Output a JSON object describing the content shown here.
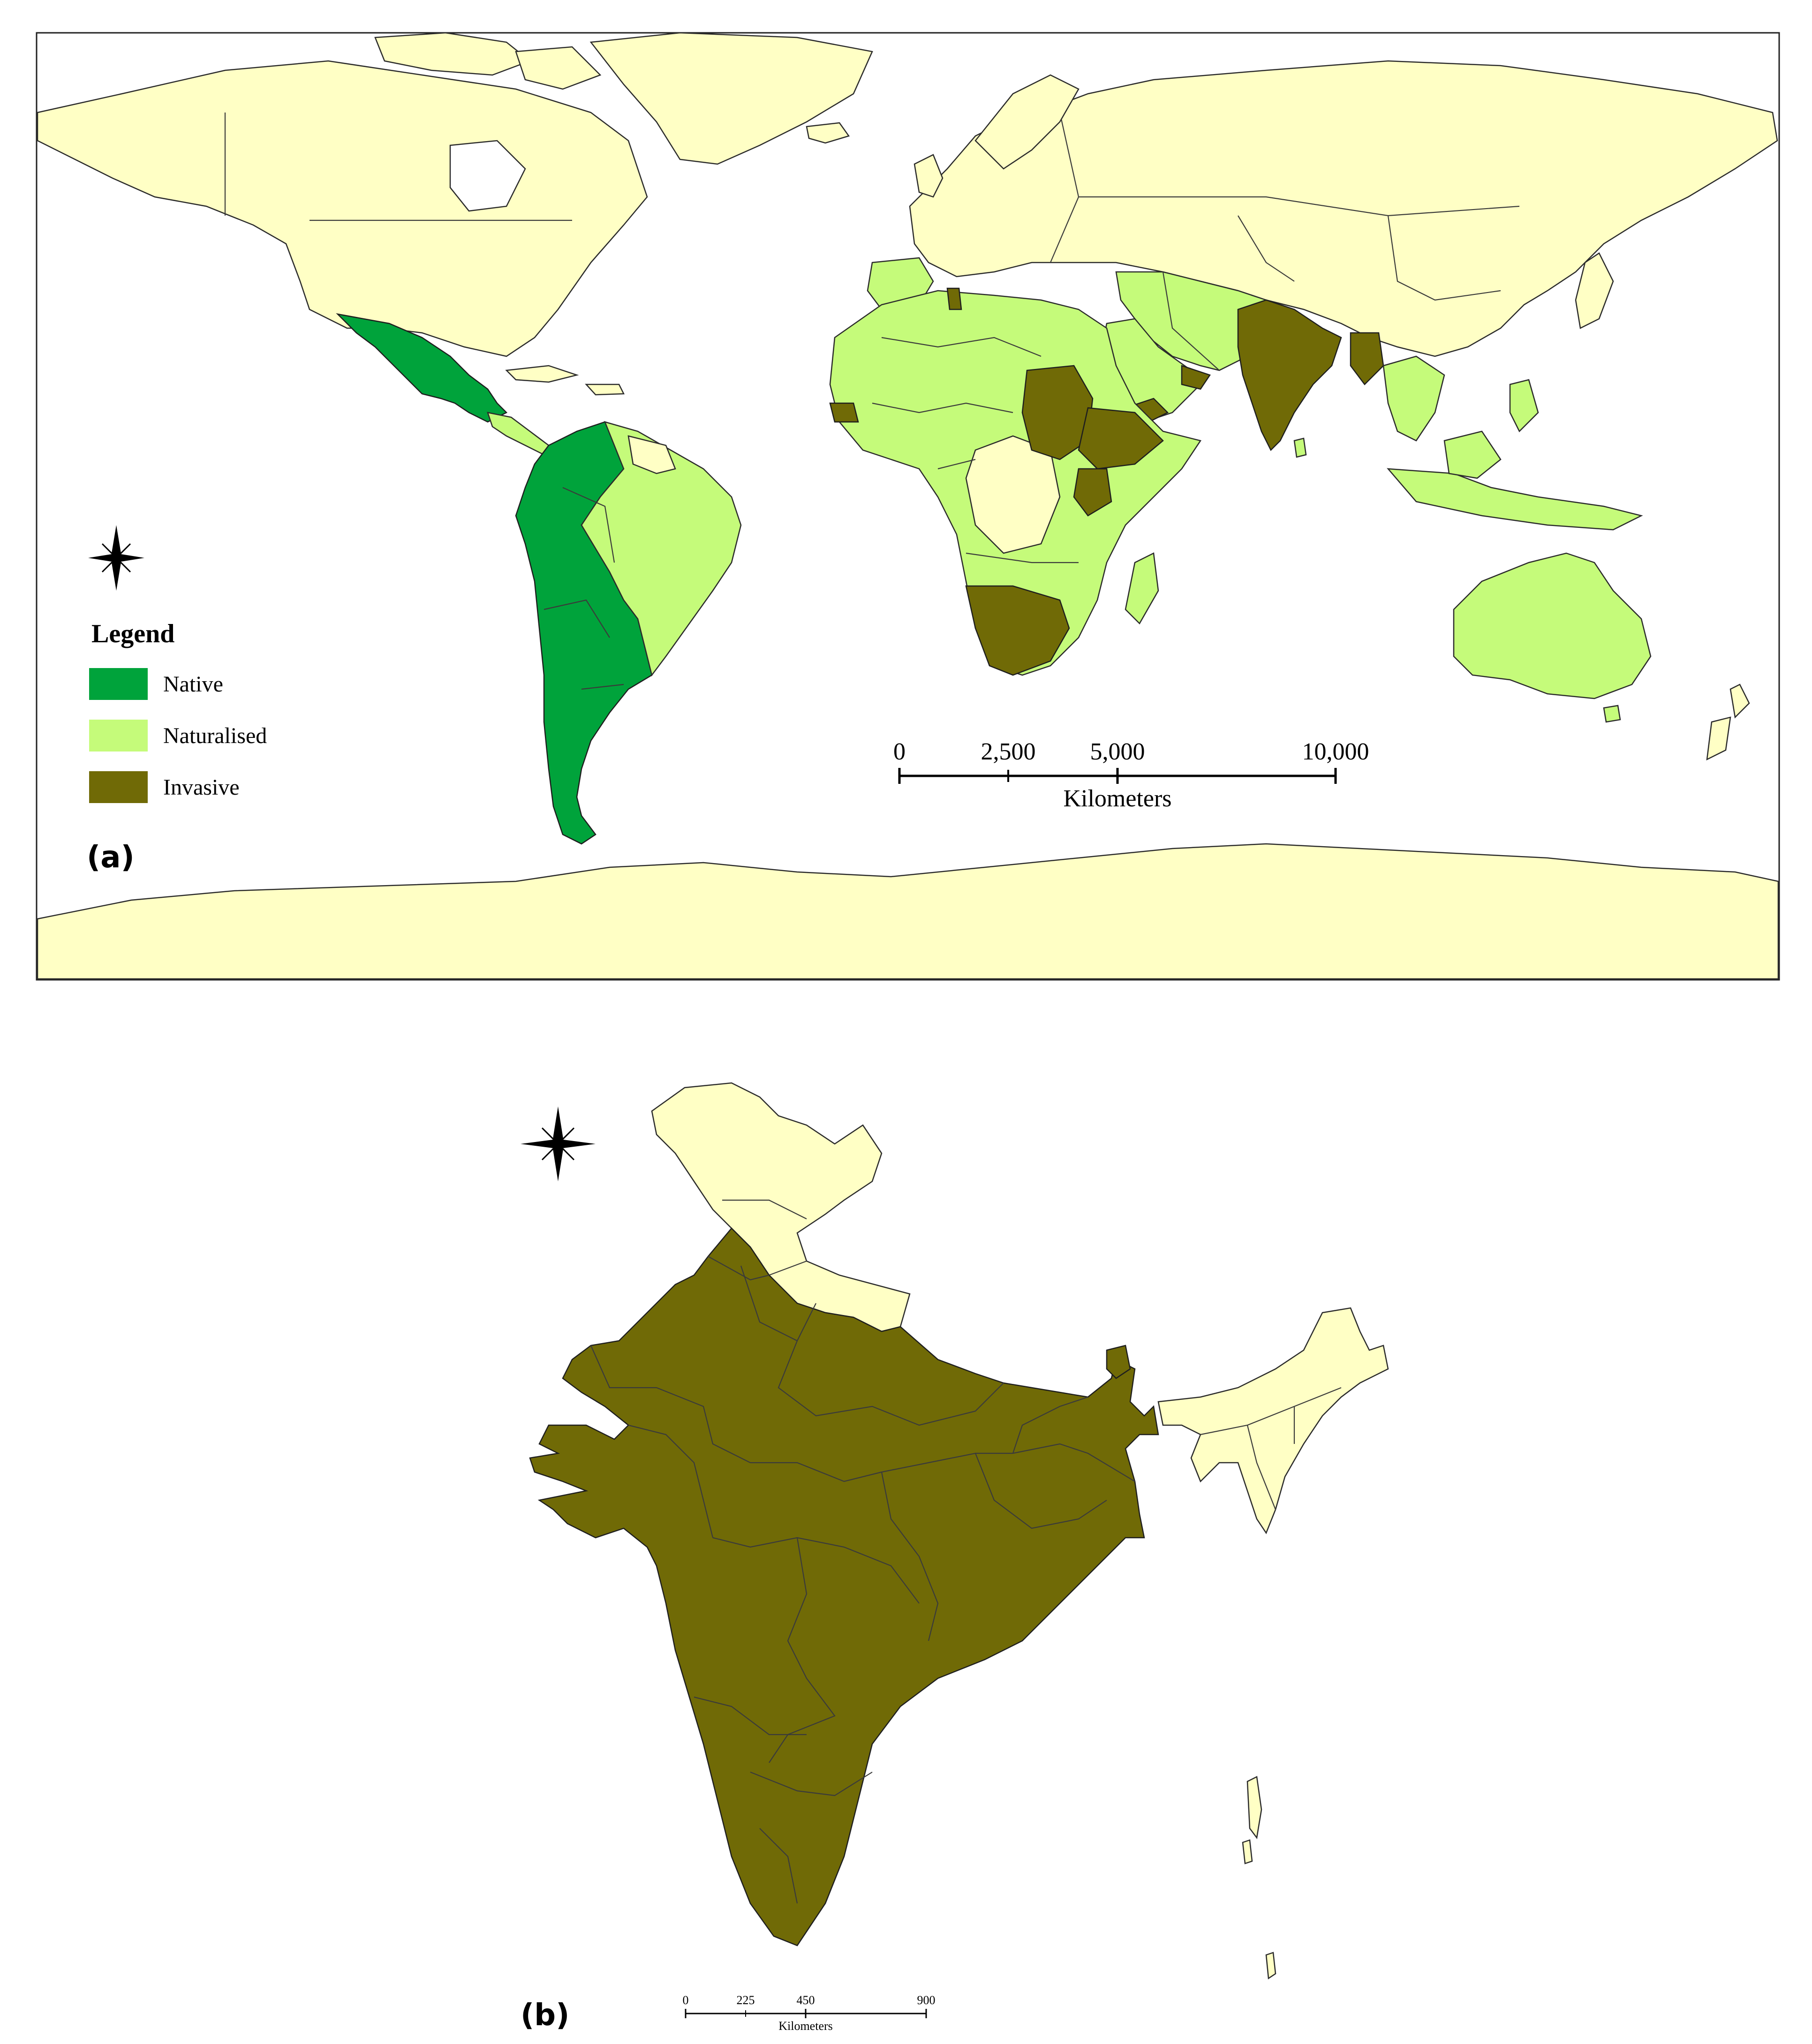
{
  "colors": {
    "native": "#00a33b",
    "naturalised": "#c5fb7a",
    "invasive": "#706a06",
    "unrecorded": "#ffffc5",
    "outline": "#2b2b2b"
  },
  "panel_a": {
    "label": "(a)",
    "legend": {
      "title": "Legend",
      "items": [
        {
          "label": "Native",
          "color": "#00a33b"
        },
        {
          "label": "Naturalised",
          "color": "#c5fb7a"
        },
        {
          "label": "Invasive",
          "color": "#706a06"
        }
      ]
    },
    "scale_bar": {
      "ticks": [
        "0",
        "2,500",
        "5,000",
        "10,000"
      ],
      "unit": "Kilometers"
    }
  },
  "panel_b": {
    "label": "(b)",
    "scale_bar": {
      "ticks": [
        "0",
        "225",
        "450",
        "900"
      ],
      "unit": "Kilometers"
    }
  }
}
